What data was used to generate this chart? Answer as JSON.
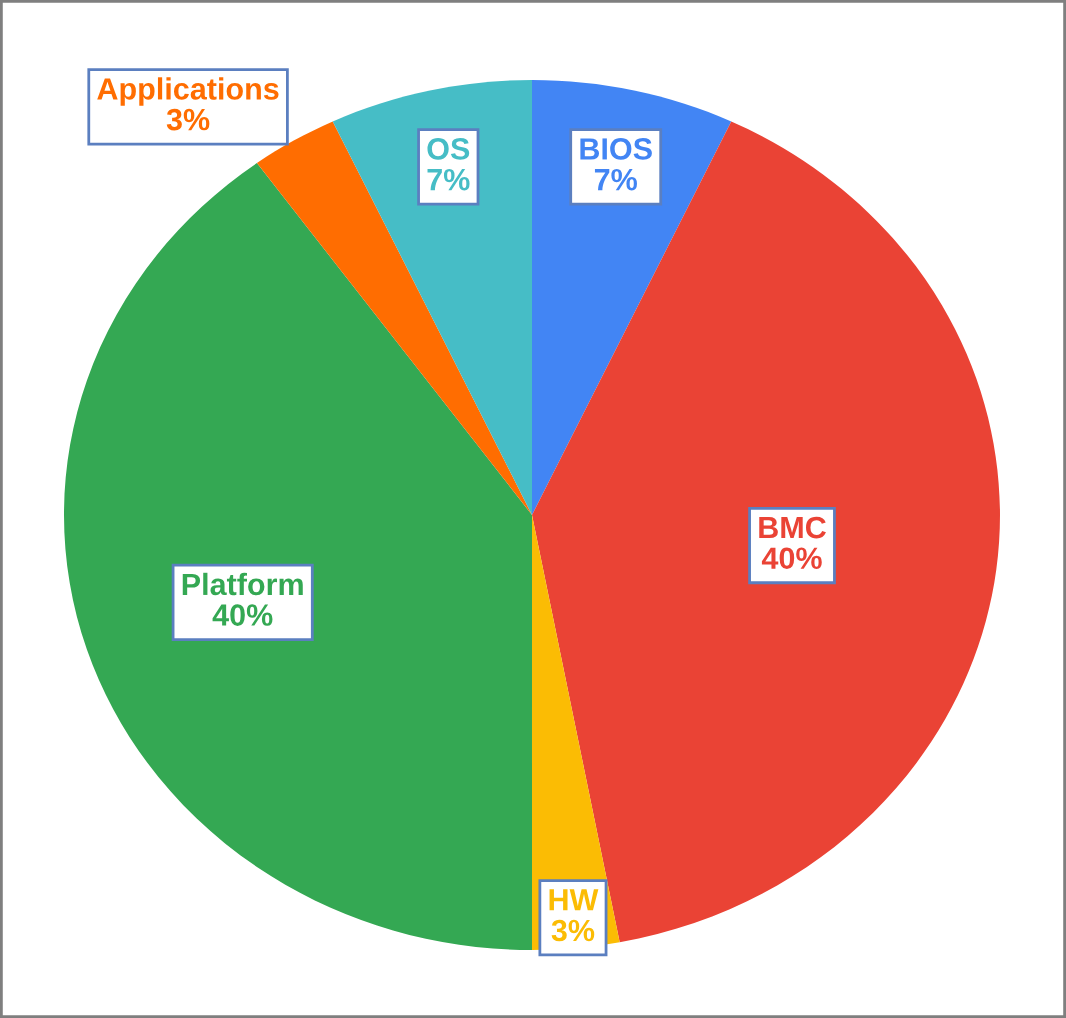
{
  "chart_data": {
    "type": "pie",
    "categories": [
      "BIOS",
      "BMC",
      "HW",
      "Platform",
      "Applications",
      "OS"
    ],
    "values": [
      7,
      40,
      3,
      40,
      3,
      7
    ],
    "value_labels": [
      "7%",
      "40%",
      "3%",
      "40%",
      "3%",
      "7%"
    ],
    "colors": [
      "#4285f4",
      "#ea4335",
      "#fbbc04",
      "#34a853",
      "#ff6d01",
      "#46bdc6"
    ],
    "legend": false
  }
}
